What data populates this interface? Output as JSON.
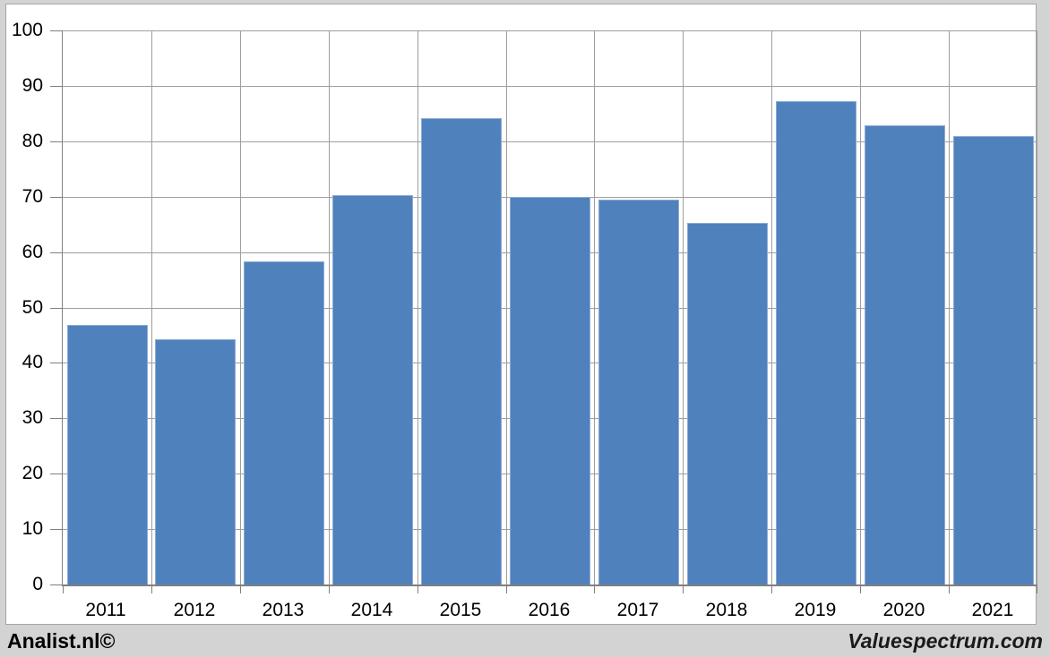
{
  "page": {
    "background": "#d3d3d3",
    "canvas_background": "#ffffff",
    "canvas_border": "#a6a6a6"
  },
  "footer": {
    "left_text": "Analist.nl©",
    "right_text": "Valuespectrum.com"
  },
  "chart_data": {
    "type": "bar",
    "title": "",
    "xlabel": "",
    "ylabel": "",
    "categories": [
      "2011",
      "2012",
      "2013",
      "2014",
      "2015",
      "2016",
      "2017",
      "2018",
      "2019",
      "2020",
      "2021"
    ],
    "values": [
      46.8,
      44.2,
      58.4,
      70.3,
      84.2,
      69.9,
      69.5,
      65.2,
      87.3,
      82.9,
      81.0
    ],
    "ylim": [
      0,
      100
    ],
    "yticks": [
      0,
      10,
      20,
      30,
      40,
      50,
      60,
      70,
      80,
      90,
      100
    ],
    "grid": true,
    "legend": false,
    "bar_color": "#4f81bd",
    "bar_border_color": "#8fabd3",
    "gridline_color": "#9e9e9e",
    "axis_color": "#7f7f7f",
    "tick_label_color": "#000000"
  }
}
